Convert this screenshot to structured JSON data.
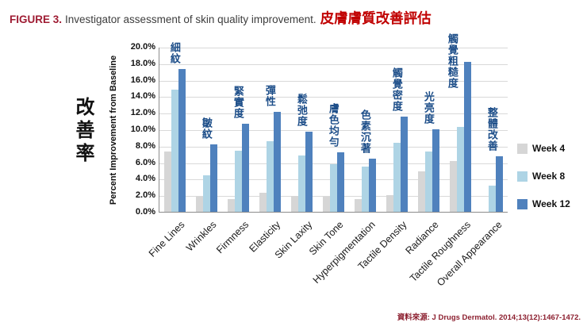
{
  "header": {
    "figure_label": "FIGURE 3.",
    "title_en": "Investigator assessment of skin quality improvement.",
    "title_zh": "皮膚膚質改善評估"
  },
  "y_axis": {
    "title_zh": "改善率",
    "title_en": "Percent Improvement from Baseline"
  },
  "source": {
    "text": "資料來源: J Drugs Dermatol. 2014;13(12):1467-1472."
  },
  "colors": {
    "figure_label": "#9e1b32",
    "title_zh": "#c00000",
    "category_zh_label": "#1d4e89",
    "grid": "#d9d9d9",
    "axis": "#8c8c8c",
    "week4": "#d6d6d6",
    "week8": "#aed4e5",
    "week12": "#4f81bd"
  },
  "chart_data": {
    "type": "bar",
    "title": "FIGURE 3. Investigator assessment of skin quality improvement. 皮膚膚質改善評估",
    "xlabel": "",
    "ylabel": "Percent Improvement from Baseline",
    "ylim": [
      0,
      20
    ],
    "ytick_step": 2,
    "ytick_labels": [
      "0.0%",
      "2.0%",
      "4.0%",
      "6.0%",
      "8.0%",
      "10.0%",
      "12.0%",
      "14.0%",
      "16.0%",
      "18.0%",
      "20.0%"
    ],
    "grid": true,
    "legend_position": "right",
    "value_unit": "percent",
    "categories": [
      "Fine Lines",
      "Wrinkles",
      "Firmness",
      "Elasticity",
      "Skin Laxity",
      "Skin Tone",
      "Hyperpigmentation",
      "Tactile Density",
      "Radiance",
      "Tactile Roughness",
      "Overall Appearance"
    ],
    "categories_zh": [
      "細紋",
      "皺紋",
      "緊實度",
      "彈性",
      "鬆弛度",
      "膚色均勻",
      "色素沉著",
      "觸覺密度",
      "光亮度",
      "觸覺粗糙度",
      "整體改善"
    ],
    "series": [
      {
        "name": "Week 4",
        "color": "#d6d6d6",
        "values": [
          7.3,
          1.8,
          1.5,
          2.3,
          1.9,
          1.8,
          1.5,
          2.0,
          4.9,
          6.2,
          0.0
        ]
      },
      {
        "name": "Week 8",
        "color": "#aed4e5",
        "values": [
          14.8,
          4.4,
          7.4,
          8.6,
          6.8,
          5.8,
          5.5,
          8.4,
          7.3,
          10.3,
          3.2
        ]
      },
      {
        "name": "Week 12",
        "color": "#4f81bd",
        "values": [
          17.3,
          8.2,
          10.7,
          12.1,
          9.7,
          7.2,
          6.4,
          11.5,
          10.0,
          18.2,
          6.7
        ]
      }
    ]
  }
}
